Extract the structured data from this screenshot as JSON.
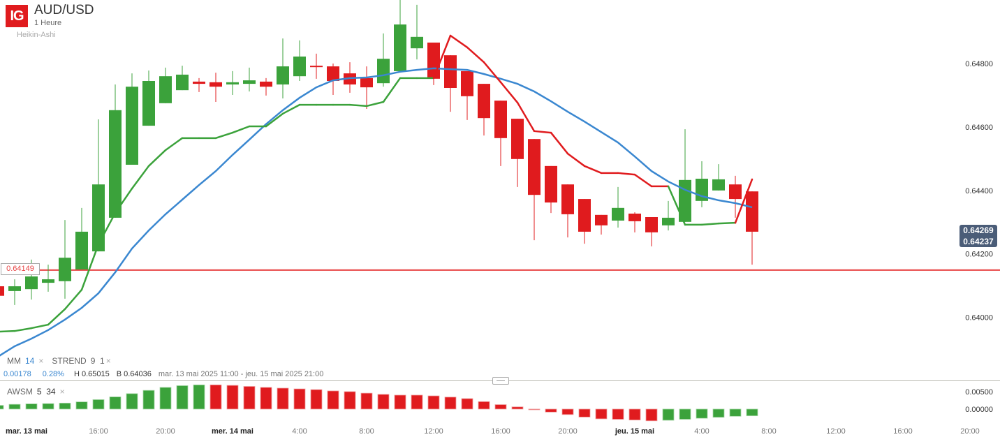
{
  "header": {
    "logo": "IG",
    "title": "AUD/USD",
    "interval": "1 Heure",
    "chart_type": "Heikin-Ashi"
  },
  "legend": {
    "ma_label": "MM",
    "ma_period": "14",
    "strend_label": "STREND",
    "strend_params": "9  1",
    "close": "×"
  },
  "info": {
    "change": "0.00178",
    "change_pct": "0.28%",
    "high": "H 0.65015",
    "low": "B 0.64036",
    "range": "mar. 13 mai 2025 11:00 - jeu. 15 mai 2025 21:00"
  },
  "price_box": {
    "line1": "0.64269",
    "line2": "0.64237"
  },
  "hline": {
    "label": "0.64149",
    "value": 0.64149
  },
  "awsm": {
    "label": "AWSM",
    "params": "5  34"
  },
  "colors": {
    "up": "#3ba23b",
    "down": "#e01b1e",
    "ma": "#3a87d0",
    "hline": "#e84444",
    "price_box": "#4b5d78"
  },
  "chart_data": {
    "type": "candlestick",
    "style": "Heikin-Ashi",
    "y_ticks": [
      "0.64800",
      "0.64600",
      "0.64400",
      "0.64200",
      "0.64000"
    ],
    "y_tick_values": [
      0.648,
      0.646,
      0.644,
      0.642,
      0.64
    ],
    "x_ticks": [
      {
        "t": "2025-05-13 11:00",
        "label": "mar. 13 mai",
        "bold": true
      },
      {
        "t": "2025-05-13 16:00",
        "label": "16:00"
      },
      {
        "t": "2025-05-13 20:00",
        "label": "20:00"
      },
      {
        "t": "2025-05-14 00:00",
        "label": "mer. 14 mai",
        "bold": true
      },
      {
        "t": "2025-05-14 04:00",
        "label": "4:00"
      },
      {
        "t": "2025-05-14 08:00",
        "label": "8:00"
      },
      {
        "t": "2025-05-14 12:00",
        "label": "12:00"
      },
      {
        "t": "2025-05-14 16:00",
        "label": "16:00"
      },
      {
        "t": "2025-05-14 20:00",
        "label": "20:00"
      },
      {
        "t": "2025-05-15 00:00",
        "label": "jeu. 15 mai",
        "bold": true
      },
      {
        "t": "2025-05-15 04:00",
        "label": "4:00"
      },
      {
        "t": "2025-05-15 08:00",
        "label": "8:00"
      },
      {
        "t": "2025-05-15 12:00",
        "label": "12:00"
      },
      {
        "t": "2025-05-15 16:00",
        "label": "16:00"
      },
      {
        "t": "2025-05-15 20:00",
        "label": "20:00"
      }
    ],
    "start": "2025-05-13 10:00",
    "interval_hours": 1,
    "candles_ohlc": [
      [
        0.64098,
        0.64098,
        0.64068,
        0.64068
      ],
      [
        0.64083,
        0.6412,
        0.64039,
        0.64098
      ],
      [
        0.64089,
        0.64182,
        0.64056,
        0.64129
      ],
      [
        0.64109,
        0.64166,
        0.64081,
        0.6412
      ],
      [
        0.64114,
        0.64307,
        0.64059,
        0.64188
      ],
      [
        0.64151,
        0.64345,
        0.64151,
        0.6427
      ],
      [
        0.64208,
        0.64624,
        0.64208,
        0.64419
      ],
      [
        0.64314,
        0.64734,
        0.64314,
        0.64653
      ],
      [
        0.64481,
        0.64769,
        0.64481,
        0.64727
      ],
      [
        0.64604,
        0.64778,
        0.64604,
        0.64745
      ],
      [
        0.64675,
        0.64787,
        0.64675,
        0.6476
      ],
      [
        0.64716,
        0.64793,
        0.64716,
        0.64765
      ],
      [
        0.64743,
        0.64754,
        0.6471,
        0.64736
      ],
      [
        0.64741,
        0.64771,
        0.64679,
        0.64727
      ],
      [
        0.64734,
        0.64776,
        0.64701,
        0.64741
      ],
      [
        0.64736,
        0.64787,
        0.64712,
        0.64747
      ],
      [
        0.64743,
        0.64754,
        0.64699,
        0.64727
      ],
      [
        0.64734,
        0.64879,
        0.6469,
        0.64791
      ],
      [
        0.6476,
        0.64873,
        0.64745,
        0.64822
      ],
      [
        0.64793,
        0.64831,
        0.64752,
        0.64789
      ],
      [
        0.64791,
        0.648,
        0.64701,
        0.64745
      ],
      [
        0.64769,
        0.64804,
        0.64708,
        0.64734
      ],
      [
        0.64754,
        0.64791,
        0.64657,
        0.64725
      ],
      [
        0.64738,
        0.64895,
        0.64727,
        0.64815
      ],
      [
        0.64776,
        0.65015,
        0.64776,
        0.64923
      ],
      [
        0.64848,
        0.64985,
        0.64813,
        0.64884
      ],
      [
        0.64866,
        0.64866,
        0.64732,
        0.64752
      ],
      [
        0.64826,
        0.64826,
        0.64648,
        0.64723
      ],
      [
        0.64776,
        0.64776,
        0.64622,
        0.64697
      ],
      [
        0.64736,
        0.64736,
        0.64573,
        0.64628
      ],
      [
        0.64683,
        0.64683,
        0.64477,
        0.64565
      ],
      [
        0.64626,
        0.64626,
        0.64411,
        0.64499
      ],
      [
        0.64562,
        0.64562,
        0.64243,
        0.64386
      ],
      [
        0.64477,
        0.64477,
        0.64329,
        0.64362
      ],
      [
        0.64419,
        0.64419,
        0.64252,
        0.64325
      ],
      [
        0.64373,
        0.64373,
        0.64232,
        0.6427
      ],
      [
        0.64323,
        0.64323,
        0.64261,
        0.6429
      ],
      [
        0.64305,
        0.64411,
        0.64283,
        0.64345
      ],
      [
        0.64327,
        0.64331,
        0.64268,
        0.64303
      ],
      [
        0.64316,
        0.64316,
        0.64224,
        0.64268
      ],
      [
        0.6429,
        0.64367,
        0.64274,
        0.64314
      ],
      [
        0.64301,
        0.64593,
        0.64301,
        0.64433
      ],
      [
        0.64367,
        0.64492,
        0.64347,
        0.64437
      ],
      [
        0.644,
        0.64483,
        0.644,
        0.64435
      ],
      [
        0.64419,
        0.64446,
        0.64314,
        0.64373
      ],
      [
        0.64397,
        0.64397,
        0.64166,
        0.6427
      ]
    ],
    "ma14": [
      0.63876,
      0.63909,
      0.63933,
      0.6396,
      0.63993,
      0.6403,
      0.64076,
      0.64142,
      0.64217,
      0.64274,
      0.64325,
      0.64371,
      0.64417,
      0.64461,
      0.64512,
      0.6456,
      0.64609,
      0.64653,
      0.64692,
      0.64725,
      0.64747,
      0.64754,
      0.64756,
      0.64763,
      0.64774,
      0.6478,
      0.64785,
      0.64782,
      0.6478,
      0.64767,
      0.64752,
      0.64736,
      0.64712,
      0.64681,
      0.64648,
      0.64617,
      0.64584,
      0.64551,
      0.64507,
      0.64461,
      0.64428,
      0.64402,
      0.64382,
      0.64369,
      0.6436,
      0.64347
    ],
    "supertrend": [
      0.63955,
      0.63957,
      0.63966,
      0.63977,
      0.64026,
      0.64087,
      0.6423,
      0.64329,
      0.64406,
      0.64477,
      0.64527,
      0.64565,
      0.64565,
      0.64565,
      0.64582,
      0.64602,
      0.64602,
      0.64642,
      0.6467,
      0.6467,
      0.6467,
      0.6467,
      0.64666,
      0.64679,
      0.64754,
      0.64754,
      0.64754,
      0.64888,
      0.64851,
      0.64804,
      0.64741,
      0.64677,
      0.64587,
      0.64582,
      0.64516,
      0.64477,
      0.64455,
      0.64455,
      0.6445,
      0.64413,
      0.64413,
      0.64292,
      0.64292,
      0.64296,
      0.64298,
      0.64435
    ],
    "supertrend_direction": [
      "up",
      "up",
      "up",
      "up",
      "up",
      "up",
      "up",
      "up",
      "up",
      "up",
      "up",
      "up",
      "up",
      "up",
      "up",
      "up",
      "up",
      "up",
      "up",
      "up",
      "up",
      "up",
      "up",
      "up",
      "up",
      "up",
      "up",
      "down",
      "down",
      "down",
      "down",
      "down",
      "down",
      "down",
      "down",
      "down",
      "down",
      "down",
      "down",
      "down",
      "down",
      "up",
      "up",
      "up",
      "up",
      "down"
    ],
    "awsm": {
      "y_ticks": [
        "0.00500",
        "0.00000"
      ],
      "y_tick_values": [
        0.005,
        0
      ],
      "values": [
        0.00107,
        0.00136,
        0.0015,
        0.00157,
        0.00171,
        0.00207,
        0.00271,
        0.0035,
        0.00443,
        0.00536,
        0.00621,
        0.00671,
        0.00693,
        0.00693,
        0.00679,
        0.0065,
        0.00621,
        0.006,
        0.00579,
        0.00557,
        0.00521,
        0.005,
        0.00457,
        0.00421,
        0.004,
        0.004,
        0.00379,
        0.00343,
        0.003,
        0.00214,
        0.00129,
        0.00064,
        -0.0001,
        -0.00086,
        -0.00157,
        -0.00229,
        -0.00279,
        -0.00293,
        -0.00314,
        -0.00336,
        -0.00321,
        -0.00293,
        -0.00264,
        -0.00236,
        -0.00207,
        -0.00193
      ]
    }
  }
}
